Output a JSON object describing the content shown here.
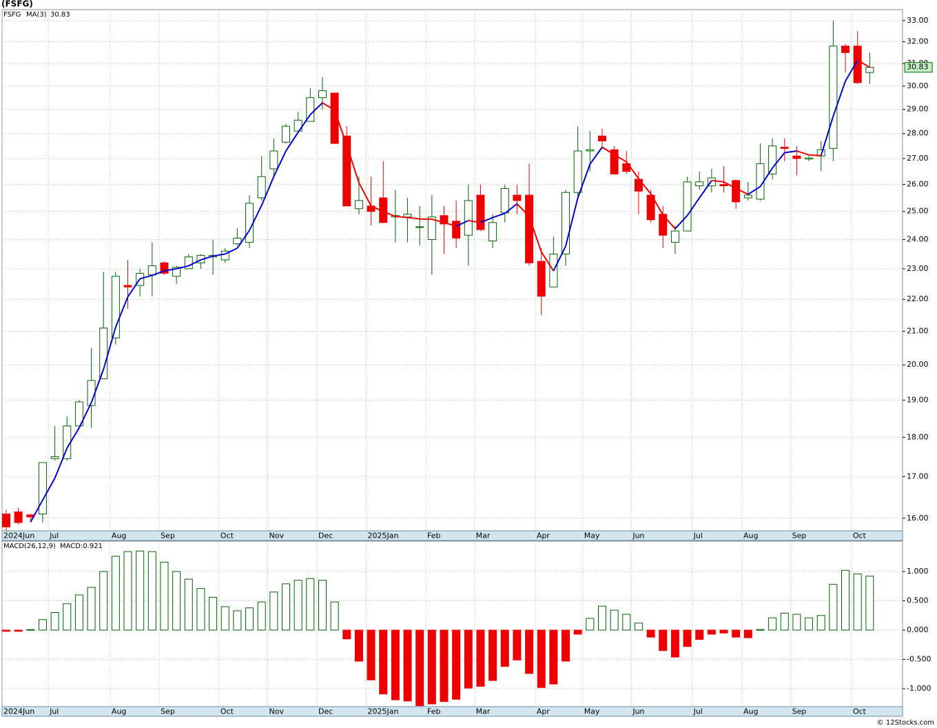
{
  "chart_data": [
    {
      "type": "candlestick",
      "title": "(FSFG)",
      "symbol": "FSFG",
      "last_label": "30.83",
      "log_scale": true,
      "grid": true,
      "up_color": "#006400",
      "down_color": "#ee0000",
      "x": [
        0,
        1,
        2,
        3,
        4,
        5,
        6,
        7,
        8,
        9,
        10,
        11,
        12,
        13,
        14,
        15,
        16,
        17,
        18,
        19,
        20,
        21,
        22,
        23,
        24,
        25,
        26,
        27,
        28,
        29,
        30,
        31,
        32,
        33,
        34,
        35,
        36,
        37,
        38,
        39,
        40,
        41,
        42,
        43,
        44,
        45,
        46,
        47,
        48,
        49,
        50,
        51,
        52,
        53,
        54,
        55,
        56,
        57,
        58,
        59,
        60,
        61,
        62,
        63,
        64,
        65,
        66,
        67,
        68,
        69,
        70,
        71
      ],
      "open": [
        16.1,
        16.15,
        16.08,
        16.1,
        17.45,
        17.45,
        18.3,
        18.85,
        19.6,
        20.8,
        22.45,
        22.45,
        22.8,
        23.2,
        22.75,
        23.0,
        23.2,
        23.4,
        23.3,
        23.85,
        23.9,
        25.5,
        26.6,
        27.65,
        28.1,
        28.5,
        29.5,
        29.7,
        27.9,
        25.1,
        25.2,
        25.5,
        24.8,
        24.8,
        24.45,
        24.0,
        24.85,
        24.65,
        24.15,
        25.6,
        23.95,
        24.95,
        25.6,
        25.6,
        23.25,
        22.4,
        23.5,
        25.7,
        27.3,
        27.9,
        27.35,
        26.8,
        26.2,
        25.6,
        24.9,
        23.9,
        24.3,
        25.95,
        25.95,
        26.0,
        26.15,
        25.5,
        25.45,
        26.4,
        27.45,
        27.1,
        26.98,
        27.1,
        27.4,
        31.8,
        31.8,
        30.6
      ],
      "high": [
        16.2,
        16.25,
        16.1,
        17.35,
        18.3,
        18.55,
        19.0,
        20.5,
        22.9,
        22.9,
        23.3,
        23.0,
        23.9,
        23.25,
        23.1,
        23.5,
        23.5,
        24.0,
        23.7,
        24.4,
        25.6,
        27.1,
        27.8,
        28.4,
        28.9,
        29.9,
        30.4,
        29.7,
        28.3,
        26.3,
        26.3,
        26.9,
        25.8,
        25.5,
        25.2,
        25.6,
        25.2,
        25.4,
        26.0,
        26.0,
        24.9,
        26.0,
        26.0,
        26.8,
        23.7,
        24.1,
        25.8,
        28.3,
        28.1,
        28.2,
        27.5,
        27.3,
        26.5,
        25.8,
        25.2,
        24.5,
        26.3,
        26.5,
        26.6,
        26.7,
        26.2,
        26.1,
        27.6,
        27.8,
        27.8,
        27.5,
        27.1,
        27.7,
        33.0,
        31.9,
        32.5,
        31.5
      ],
      "low": [
        15.7,
        15.85,
        15.95,
        15.9,
        17.4,
        17.4,
        18.3,
        18.25,
        19.6,
        20.6,
        21.7,
        22.1,
        22.1,
        22.8,
        22.5,
        23.0,
        23.0,
        22.8,
        23.2,
        23.8,
        23.7,
        25.4,
        26.3,
        27.6,
        28.1,
        28.5,
        29.0,
        27.6,
        25.2,
        24.9,
        24.5,
        24.6,
        23.9,
        23.9,
        23.8,
        22.8,
        23.5,
        23.7,
        23.1,
        24.3,
        23.7,
        24.6,
        24.9,
        23.1,
        21.5,
        22.4,
        23.1,
        25.5,
        26.5,
        27.4,
        26.4,
        26.4,
        24.9,
        24.6,
        23.7,
        23.5,
        24.3,
        25.8,
        25.7,
        25.7,
        25.1,
        25.4,
        25.4,
        26.2,
        26.9,
        26.35,
        26.9,
        26.5,
        26.9,
        30.6,
        30.1,
        30.1
      ],
      "close": [
        15.8,
        15.9,
        16.03,
        17.35,
        17.5,
        18.3,
        18.95,
        19.55,
        21.1,
        22.75,
        22.4,
        22.85,
        23.1,
        22.85,
        23.05,
        23.4,
        23.45,
        23.45,
        23.6,
        24.05,
        25.3,
        26.3,
        27.3,
        28.3,
        28.55,
        29.5,
        29.8,
        27.6,
        25.2,
        25.4,
        25.0,
        24.6,
        24.85,
        24.9,
        24.45,
        24.8,
        24.55,
        24.05,
        25.4,
        24.35,
        24.6,
        25.85,
        25.4,
        23.2,
        22.1,
        23.5,
        25.7,
        27.3,
        27.35,
        27.7,
        26.4,
        26.5,
        25.75,
        24.7,
        24.15,
        24.3,
        26.1,
        26.1,
        26.25,
        25.95,
        25.35,
        25.6,
        26.8,
        27.5,
        27.4,
        27.0,
        27.02,
        27.35,
        31.8,
        31.5,
        30.15,
        30.83
      ],
      "ma": {
        "name": "MA(3)",
        "up_color": "#0000cc",
        "down_color": "#ee0000",
        "values": [
          null,
          null,
          15.91,
          16.43,
          16.96,
          17.72,
          18.25,
          18.93,
          19.87,
          21.13,
          22.08,
          22.67,
          22.78,
          22.93,
          23.0,
          23.1,
          23.3,
          23.43,
          23.5,
          23.7,
          24.32,
          25.22,
          26.3,
          27.3,
          28.05,
          28.78,
          29.28,
          28.97,
          27.53,
          26.07,
          25.2,
          25.0,
          24.82,
          24.78,
          24.73,
          24.72,
          24.6,
          24.47,
          24.67,
          24.6,
          24.78,
          24.93,
          25.28,
          24.82,
          23.57,
          22.93,
          23.77,
          25.5,
          26.78,
          27.45,
          27.15,
          26.87,
          26.22,
          25.65,
          24.87,
          24.38,
          24.85,
          25.5,
          26.15,
          26.1,
          25.85,
          25.63,
          25.92,
          26.63,
          27.23,
          27.3,
          27.14,
          27.12,
          28.72,
          30.22,
          31.15,
          30.83
        ]
      },
      "ylim": [
        15.71,
        33.53
      ],
      "yticks": [
        {
          "value": 16,
          "label": "16.00"
        },
        {
          "value": 17,
          "label": "17.00"
        },
        {
          "value": 18,
          "label": "18.00"
        },
        {
          "value": 19,
          "label": "19.00"
        },
        {
          "value": 20,
          "label": "20.00"
        },
        {
          "value": 21,
          "label": "21.00"
        },
        {
          "value": 22,
          "label": "22.00"
        },
        {
          "value": 23,
          "label": "23.00"
        },
        {
          "value": 24,
          "label": "24.00"
        },
        {
          "value": 25,
          "label": "25.00"
        },
        {
          "value": 26,
          "label": "26.00"
        },
        {
          "value": 27,
          "label": "27.00"
        },
        {
          "value": 28,
          "label": "28.00"
        },
        {
          "value": 29,
          "label": "29.00"
        },
        {
          "value": 30,
          "label": "30.00"
        },
        {
          "value": 31,
          "label": "31.00"
        },
        {
          "value": 32,
          "label": "32.00"
        },
        {
          "value": 33,
          "label": "33.00"
        }
      ],
      "xlim": [
        -0.34,
        73.7
      ],
      "xticks": [
        {
          "value": -0.34,
          "label": "2024Jun"
        },
        {
          "value": 3.46,
          "label": "Jul"
        },
        {
          "value": 8.55,
          "label": "Aug"
        },
        {
          "value": 12.58,
          "label": "Sep"
        },
        {
          "value": 17.5,
          "label": "Oct"
        },
        {
          "value": 21.5,
          "label": "Nov"
        },
        {
          "value": 25.55,
          "label": "Dec"
        },
        {
          "value": 29.6,
          "label": "2025Jan"
        },
        {
          "value": 34.5,
          "label": "Feb"
        },
        {
          "value": 38.5,
          "label": "Mar"
        },
        {
          "value": 43.5,
          "label": "Apr"
        },
        {
          "value": 47.4,
          "label": "May"
        },
        {
          "value": 51.4,
          "label": "Jun"
        },
        {
          "value": 56.4,
          "label": "Jul"
        },
        {
          "value": 60.5,
          "label": "Aug"
        },
        {
          "value": 64.5,
          "label": "Sep"
        },
        {
          "value": 69.5,
          "label": "Oct"
        }
      ]
    },
    {
      "type": "histogram-bars",
      "name": "MACD(26,12,9)",
      "value_label": "MACD:0.921",
      "grid": true,
      "up_color": "#006400",
      "down_color": "#ee0000",
      "x": [
        0,
        1,
        2,
        3,
        4,
        5,
        6,
        7,
        8,
        9,
        10,
        11,
        12,
        13,
        14,
        15,
        16,
        17,
        18,
        19,
        20,
        21,
        22,
        23,
        24,
        25,
        26,
        27,
        28,
        29,
        30,
        31,
        32,
        33,
        34,
        35,
        36,
        37,
        38,
        39,
        40,
        41,
        42,
        43,
        44,
        45,
        46,
        47,
        48,
        49,
        50,
        51,
        52,
        53,
        54,
        55,
        56,
        57,
        58,
        59,
        60,
        61,
        62,
        63,
        64,
        65,
        66,
        67,
        68,
        69,
        70,
        71
      ],
      "values": [
        -0.02,
        -0.02,
        0.01,
        0.18,
        0.3,
        0.45,
        0.6,
        0.73,
        1.0,
        1.26,
        1.34,
        1.35,
        1.34,
        1.16,
        1.0,
        0.87,
        0.71,
        0.56,
        0.4,
        0.33,
        0.38,
        0.48,
        0.65,
        0.79,
        0.85,
        0.88,
        0.85,
        0.48,
        -0.15,
        -0.53,
        -0.85,
        -1.09,
        -1.19,
        -1.21,
        -1.29,
        -1.26,
        -1.22,
        -1.18,
        -0.99,
        -0.96,
        -0.86,
        -0.62,
        -0.51,
        -0.74,
        -0.98,
        -0.92,
        -0.53,
        -0.07,
        0.2,
        0.41,
        0.34,
        0.27,
        0.12,
        -0.12,
        -0.35,
        -0.46,
        -0.28,
        -0.16,
        -0.07,
        -0.05,
        -0.12,
        -0.13,
        0.01,
        0.21,
        0.29,
        0.27,
        0.21,
        0.25,
        0.78,
        1.02,
        0.96,
        0.921
      ],
      "ylim": [
        -1.306,
        1.518
      ],
      "yticks": [
        {
          "value": -1,
          "label": "-1.000"
        },
        {
          "value": -0.5,
          "label": "-0.500"
        },
        {
          "value": 0,
          "label": "0.000"
        },
        {
          "value": 0.5,
          "label": "0.500"
        },
        {
          "value": 1,
          "label": "1.000"
        }
      ],
      "xlim": [
        -0.34,
        73.7
      ],
      "xticks": [
        {
          "value": -0.34,
          "label": "2024Jun"
        },
        {
          "value": 3.46,
          "label": "Jul"
        },
        {
          "value": 8.55,
          "label": "Aug"
        },
        {
          "value": 12.58,
          "label": "Sep"
        },
        {
          "value": 17.5,
          "label": "Oct"
        },
        {
          "value": 21.5,
          "label": "Nov"
        },
        {
          "value": 25.55,
          "label": "Dec"
        },
        {
          "value": 29.6,
          "label": "2025Jan"
        },
        {
          "value": 34.5,
          "label": "Feb"
        },
        {
          "value": 38.5,
          "label": "Mar"
        },
        {
          "value": 43.5,
          "label": "Apr"
        },
        {
          "value": 47.4,
          "label": "May"
        },
        {
          "value": 51.4,
          "label": "Jun"
        },
        {
          "value": 56.4,
          "label": "Jul"
        },
        {
          "value": 60.5,
          "label": "Aug"
        },
        {
          "value": 64.5,
          "label": "Sep"
        },
        {
          "value": 69.5,
          "label": "Oct"
        }
      ]
    }
  ],
  "footer": "© 12Stocks.com"
}
